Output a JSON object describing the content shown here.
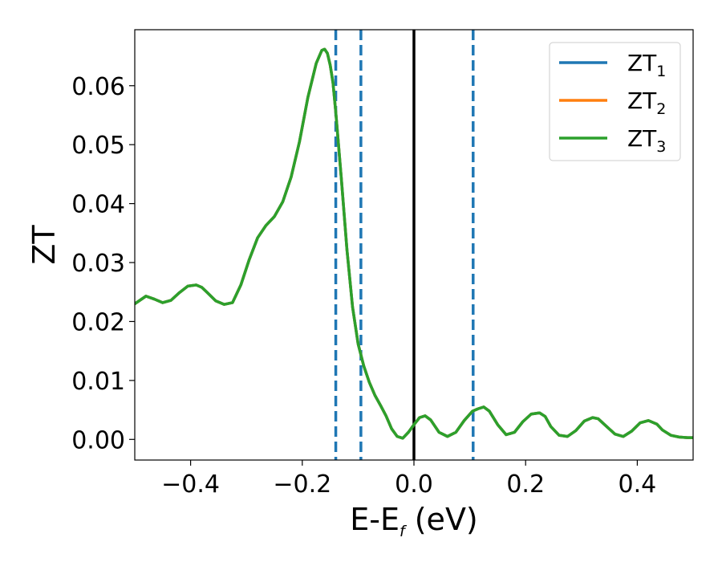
{
  "chart_data": {
    "type": "line",
    "title": "",
    "xlabel": {
      "main": "E-E",
      "sub": "f",
      "suffix": " (eV)"
    },
    "ylabel": "ZT",
    "xlim": [
      -0.5,
      0.5
    ],
    "ylim": [
      -0.0035,
      0.0695
    ],
    "xticks": [
      -0.4,
      -0.2,
      0.0,
      0.2,
      0.4
    ],
    "xtick_labels": [
      "−0.4",
      "−0.2",
      "0.0",
      "0.2",
      "0.4"
    ],
    "yticks": [
      0.0,
      0.01,
      0.02,
      0.03,
      0.04,
      0.05,
      0.06
    ],
    "ytick_labels": [
      "0.00",
      "0.01",
      "0.02",
      "0.03",
      "0.04",
      "0.05",
      "0.06"
    ],
    "grid": false,
    "legend_position": "top-right",
    "x": [
      -0.5,
      -0.48,
      -0.465,
      -0.45,
      -0.435,
      -0.42,
      -0.405,
      -0.39,
      -0.38,
      -0.37,
      -0.355,
      -0.34,
      -0.325,
      -0.31,
      -0.295,
      -0.28,
      -0.265,
      -0.25,
      -0.235,
      -0.22,
      -0.205,
      -0.19,
      -0.175,
      -0.165,
      -0.16,
      -0.155,
      -0.15,
      -0.145,
      -0.14,
      -0.13,
      -0.12,
      -0.11,
      -0.1,
      -0.09,
      -0.08,
      -0.07,
      -0.06,
      -0.05,
      -0.04,
      -0.03,
      -0.02,
      -0.01,
      0.0,
      0.01,
      0.02,
      0.03,
      0.045,
      0.06,
      0.075,
      0.09,
      0.105,
      0.115,
      0.125,
      0.135,
      0.15,
      0.165,
      0.18,
      0.195,
      0.21,
      0.225,
      0.235,
      0.245,
      0.26,
      0.275,
      0.29,
      0.305,
      0.32,
      0.33,
      0.345,
      0.36,
      0.375,
      0.39,
      0.405,
      0.42,
      0.435,
      0.445,
      0.46,
      0.475,
      0.49,
      0.5
    ],
    "series": [
      {
        "name": "ZT",
        "sub": "1",
        "color": "#1f77b4",
        "values": [
          0.023,
          0.0243,
          0.0238,
          0.0232,
          0.0236,
          0.0249,
          0.026,
          0.0262,
          0.0258,
          0.0249,
          0.0235,
          0.0229,
          0.0232,
          0.0262,
          0.0305,
          0.0342,
          0.0363,
          0.0378,
          0.0403,
          0.0445,
          0.0505,
          0.058,
          0.0638,
          0.066,
          0.0662,
          0.0655,
          0.0635,
          0.0605,
          0.0555,
          0.0442,
          0.0322,
          0.0225,
          0.0162,
          0.0125,
          0.0097,
          0.0075,
          0.0058,
          0.004,
          0.0018,
          0.0005,
          0.0002,
          0.0012,
          0.0025,
          0.0037,
          0.004,
          0.0033,
          0.0012,
          0.0005,
          0.0012,
          0.0032,
          0.0048,
          0.0052,
          0.0055,
          0.0048,
          0.0025,
          0.0008,
          0.0012,
          0.003,
          0.0043,
          0.0045,
          0.0039,
          0.0022,
          0.0007,
          0.0005,
          0.0015,
          0.0031,
          0.0037,
          0.0035,
          0.0022,
          0.0009,
          0.0005,
          0.0014,
          0.0028,
          0.0032,
          0.0026,
          0.0016,
          0.0007,
          0.0004,
          0.0003,
          0.0003
        ]
      },
      {
        "name": "ZT",
        "sub": "2",
        "color": "#ff7f0e",
        "values": [
          0.023,
          0.0243,
          0.0238,
          0.0232,
          0.0236,
          0.0249,
          0.026,
          0.0262,
          0.0258,
          0.0249,
          0.0235,
          0.0229,
          0.0232,
          0.0262,
          0.0305,
          0.0342,
          0.0363,
          0.0378,
          0.0403,
          0.0445,
          0.0505,
          0.058,
          0.0638,
          0.066,
          0.0662,
          0.0655,
          0.0635,
          0.0605,
          0.0555,
          0.0442,
          0.0322,
          0.0225,
          0.0162,
          0.0125,
          0.0097,
          0.0075,
          0.0058,
          0.004,
          0.0018,
          0.0005,
          0.0002,
          0.0012,
          0.0025,
          0.0037,
          0.004,
          0.0033,
          0.0012,
          0.0005,
          0.0012,
          0.0032,
          0.0048,
          0.0052,
          0.0055,
          0.0048,
          0.0025,
          0.0008,
          0.0012,
          0.003,
          0.0043,
          0.0045,
          0.0039,
          0.0022,
          0.0007,
          0.0005,
          0.0015,
          0.0031,
          0.0037,
          0.0035,
          0.0022,
          0.0009,
          0.0005,
          0.0014,
          0.0028,
          0.0032,
          0.0026,
          0.0016,
          0.0007,
          0.0004,
          0.0003,
          0.0003
        ]
      },
      {
        "name": "ZT",
        "sub": "3",
        "color": "#2ca02c",
        "values": [
          0.023,
          0.0243,
          0.0238,
          0.0232,
          0.0236,
          0.0249,
          0.026,
          0.0262,
          0.0258,
          0.0249,
          0.0235,
          0.0229,
          0.0232,
          0.0262,
          0.0305,
          0.0342,
          0.0363,
          0.0378,
          0.0403,
          0.0445,
          0.0505,
          0.058,
          0.0638,
          0.066,
          0.0662,
          0.0655,
          0.0635,
          0.0605,
          0.0555,
          0.0442,
          0.0322,
          0.0225,
          0.0162,
          0.0125,
          0.0097,
          0.0075,
          0.0058,
          0.004,
          0.0018,
          0.0005,
          0.0002,
          0.0012,
          0.0025,
          0.0037,
          0.004,
          0.0033,
          0.0012,
          0.0005,
          0.0012,
          0.0032,
          0.0048,
          0.0052,
          0.0055,
          0.0048,
          0.0025,
          0.0008,
          0.0012,
          0.003,
          0.0043,
          0.0045,
          0.0039,
          0.0022,
          0.0007,
          0.0005,
          0.0015,
          0.0031,
          0.0037,
          0.0035,
          0.0022,
          0.0009,
          0.0005,
          0.0014,
          0.0028,
          0.0032,
          0.0026,
          0.0016,
          0.0007,
          0.0004,
          0.0003,
          0.0003
        ]
      }
    ],
    "vlines": [
      {
        "x": -0.14,
        "color": "#1f77b4",
        "style": "dashed"
      },
      {
        "x": -0.095,
        "color": "#1f77b4",
        "style": "dashed"
      },
      {
        "x": 0.0,
        "color": "#000000",
        "style": "solid"
      },
      {
        "x": 0.106,
        "color": "#1f77b4",
        "style": "dashed"
      }
    ]
  }
}
